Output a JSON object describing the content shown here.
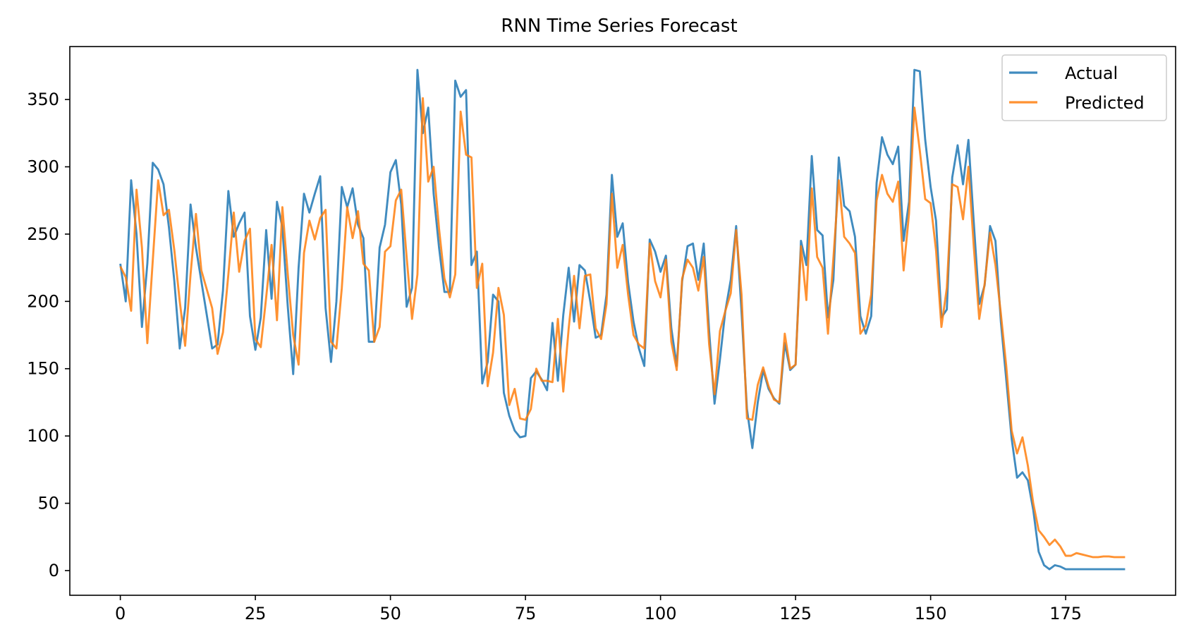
{
  "chart_data": {
    "type": "line",
    "title": "RNN Time Series Forecast",
    "xlabel": "",
    "ylabel": "",
    "xlim": [
      -9.35,
      195.35
    ],
    "ylim": [
      -18.35,
      389.35
    ],
    "xticks": [
      0,
      25,
      50,
      75,
      100,
      125,
      150,
      175
    ],
    "yticks": [
      0,
      50,
      100,
      150,
      200,
      250,
      300,
      350
    ],
    "grid": false,
    "legend_position": "top-right",
    "series": [
      {
        "name": "Actual",
        "color": "#1f77b4",
        "x": [
          0,
          1,
          2,
          3,
          4,
          5,
          6,
          7,
          8,
          9,
          10,
          11,
          12,
          13,
          14,
          15,
          16,
          17,
          18,
          19,
          20,
          21,
          22,
          23,
          24,
          25,
          26,
          27,
          28,
          29,
          30,
          31,
          32,
          33,
          34,
          35,
          36,
          37,
          38,
          39,
          40,
          41,
          42,
          43,
          44,
          45,
          46,
          47,
          48,
          49,
          50,
          51,
          52,
          53,
          54,
          55,
          56,
          57,
          58,
          59,
          60,
          61,
          62,
          63,
          64,
          65,
          66,
          67,
          68,
          69,
          70,
          71,
          72,
          73,
          74,
          75,
          76,
          77,
          78,
          79,
          80,
          81,
          82,
          83,
          84,
          85,
          86,
          87,
          88,
          89,
          90,
          91,
          92,
          93,
          94,
          95,
          96,
          97,
          98,
          99,
          100,
          101,
          102,
          103,
          104,
          105,
          106,
          107,
          108,
          109,
          110,
          111,
          112,
          113,
          114,
          115,
          116,
          117,
          118,
          119,
          120,
          121,
          122,
          123,
          124,
          125,
          126,
          127,
          128,
          129,
          130,
          131,
          132,
          133,
          134,
          135,
          136,
          137,
          138,
          139,
          140,
          141,
          142,
          143,
          144,
          145,
          146,
          147,
          148,
          149,
          150,
          151,
          152,
          153,
          154,
          155,
          156,
          157,
          158,
          159,
          160,
          161,
          162,
          163,
          164,
          165,
          166,
          167,
          168,
          169,
          170,
          171,
          172,
          173,
          174,
          175,
          176,
          177,
          178,
          179,
          180,
          181,
          182,
          183,
          184,
          185,
          186
        ],
        "values": [
          228,
          200,
          290,
          250,
          181,
          228,
          303,
          298,
          287,
          255,
          215,
          165,
          195,
          272,
          240,
          215,
          190,
          165,
          168,
          208,
          282,
          248,
          258,
          266,
          189,
          164,
          188,
          253,
          202,
          274,
          255,
          196,
          146,
          225,
          280,
          266,
          280,
          293,
          195,
          155,
          200,
          285,
          270,
          284,
          257,
          247,
          170,
          170,
          240,
          257,
          296,
          305,
          272,
          196,
          210,
          372,
          325,
          344,
          280,
          240,
          207,
          207,
          364,
          352,
          357,
          227,
          237,
          139,
          155,
          205,
          200,
          132,
          115,
          104,
          99,
          100,
          143,
          148,
          142,
          134,
          184,
          141,
          190,
          225,
          185,
          227,
          223,
          200,
          173,
          175,
          205,
          294,
          248,
          258,
          214,
          185,
          165,
          152,
          246,
          237,
          222,
          234,
          180,
          152,
          215,
          241,
          243,
          216,
          243,
          178,
          124,
          157,
          193,
          216,
          256,
          192,
          120,
          91,
          125,
          149,
          135,
          128,
          124,
          169,
          149,
          153,
          245,
          227,
          308,
          253,
          249,
          188,
          216,
          307,
          271,
          267,
          248,
          189,
          176,
          189,
          288,
          322,
          309,
          302,
          315,
          245,
          274,
          372,
          371,
          320,
          285,
          260,
          188,
          194,
          292,
          316,
          287,
          320,
          258,
          198,
          212,
          256,
          245,
          185,
          142,
          98,
          69,
          73,
          67,
          45,
          14,
          4,
          1,
          4,
          3,
          1,
          1,
          1,
          1,
          1,
          1,
          1,
          1,
          1,
          1,
          1,
          1
        ]
      },
      {
        "name": "Predicted",
        "color": "#ff7f0e",
        "x": [
          0,
          1,
          2,
          3,
          4,
          5,
          6,
          7,
          8,
          9,
          10,
          11,
          12,
          13,
          14,
          15,
          16,
          17,
          18,
          19,
          20,
          21,
          22,
          23,
          24,
          25,
          26,
          27,
          28,
          29,
          30,
          31,
          32,
          33,
          34,
          35,
          36,
          37,
          38,
          39,
          40,
          41,
          42,
          43,
          44,
          45,
          46,
          47,
          48,
          49,
          50,
          51,
          52,
          53,
          54,
          55,
          56,
          57,
          58,
          59,
          60,
          61,
          62,
          63,
          64,
          65,
          66,
          67,
          68,
          69,
          70,
          71,
          72,
          73,
          74,
          75,
          76,
          77,
          78,
          79,
          80,
          81,
          82,
          83,
          84,
          85,
          86,
          87,
          88,
          89,
          90,
          91,
          92,
          93,
          94,
          95,
          96,
          97,
          98,
          99,
          100,
          101,
          102,
          103,
          104,
          105,
          106,
          107,
          108,
          109,
          110,
          111,
          112,
          113,
          114,
          115,
          116,
          117,
          118,
          119,
          120,
          121,
          122,
          123,
          124,
          125,
          126,
          127,
          128,
          129,
          130,
          131,
          132,
          133,
          134,
          135,
          136,
          137,
          138,
          139,
          140,
          141,
          142,
          143,
          144,
          145,
          146,
          147,
          148,
          149,
          150,
          151,
          152,
          153,
          154,
          155,
          156,
          157,
          158,
          159,
          160,
          161,
          162,
          163,
          164,
          165,
          166,
          167,
          168,
          169,
          170,
          171,
          172,
          173,
          174,
          175,
          176,
          177,
          178,
          179,
          180,
          181,
          182,
          183,
          184,
          185,
          186
        ],
        "values": [
          226,
          218,
          193,
          283,
          240,
          169,
          230,
          290,
          264,
          268,
          238,
          200,
          167,
          220,
          265,
          223,
          209,
          195,
          161,
          177,
          220,
          266,
          222,
          245,
          254,
          172,
          166,
          203,
          242,
          186,
          270,
          220,
          175,
          153,
          236,
          260,
          246,
          262,
          268,
          170,
          165,
          210,
          270,
          247,
          267,
          228,
          223,
          170,
          181,
          237,
          241,
          275,
          283,
          233,
          187,
          220,
          351,
          289,
          300,
          254,
          217,
          203,
          220,
          341,
          309,
          307,
          210,
          228,
          137,
          162,
          210,
          190,
          123,
          135,
          113,
          112,
          120,
          150,
          141,
          141,
          140,
          187,
          133,
          180,
          219,
          180,
          219,
          220,
          180,
          172,
          198,
          280,
          225,
          242,
          205,
          175,
          168,
          165,
          243,
          215,
          203,
          231,
          170,
          149,
          217,
          231,
          225,
          208,
          233,
          168,
          131,
          178,
          193,
          206,
          253,
          205,
          113,
          112,
          138,
          151,
          137,
          127,
          125,
          176,
          150,
          153,
          241,
          201,
          284,
          233,
          225,
          176,
          232,
          290,
          248,
          243,
          236,
          176,
          182,
          205,
          275,
          294,
          280,
          274,
          289,
          223,
          265,
          344,
          312,
          276,
          273,
          238,
          181,
          210,
          287,
          285,
          261,
          300,
          240,
          187,
          213,
          251,
          227,
          191,
          152,
          104,
          87,
          99,
          78,
          50,
          30,
          25,
          19,
          23,
          18,
          11,
          11,
          13,
          12,
          11,
          10,
          10,
          10.5,
          10.5,
          10,
          10,
          10
        ]
      }
    ]
  }
}
